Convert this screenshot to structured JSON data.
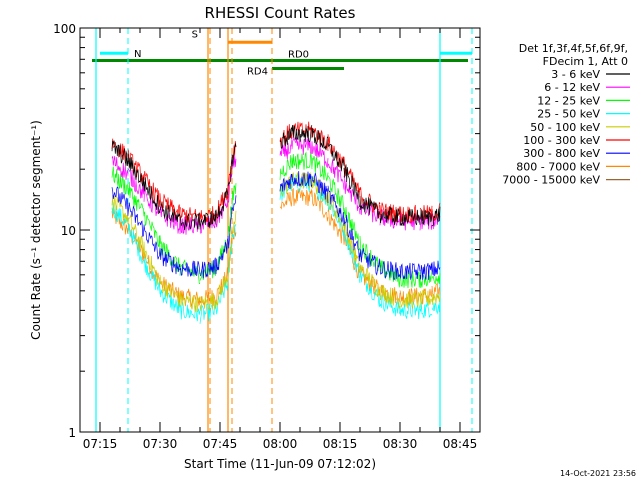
{
  "chart_data": {
    "type": "line",
    "title": "RHESSI Count Rates",
    "xlabel": "Start Time (11-Jun-09 07:12:02)",
    "ylabel": "Count Rate (s⁻¹ detector segment⁻¹)",
    "yscale": "log",
    "ylim": [
      1,
      100
    ],
    "xlim": [
      "07:10",
      "08:50"
    ],
    "y_ticks": [
      "1",
      "10",
      "100"
    ],
    "x_ticks": [
      "07:15",
      "07:30",
      "07:45",
      "08:00",
      "08:15",
      "08:30",
      "08:45"
    ],
    "legend_placement": "right",
    "legend_header": [
      "Det 1f,3f,4f,5f,6f,9f,",
      "FDecim 1, Att 0"
    ],
    "series": [
      {
        "name": "3 - 6 keV",
        "color": "#000000",
        "x": [
          "07:18",
          "07:22",
          "07:26",
          "07:30",
          "07:35",
          "07:40",
          "07:44",
          "07:47",
          "07:48",
          "07:49",
          "07:50",
          "07:58",
          "08:00",
          "08:03",
          "08:08",
          "08:12",
          "08:16",
          "08:20",
          "08:25",
          "08:30",
          "08:35",
          "08:38",
          "08:40"
        ],
        "y": [
          26,
          22,
          17,
          13,
          11,
          11,
          11.5,
          15,
          22,
          26,
          null,
          null,
          27,
          30,
          30,
          26,
          20,
          14,
          12,
          11.5,
          11.5,
          11.5,
          12
        ]
      },
      {
        "name": "6 - 12 keV",
        "color": "#ff00ff",
        "x": [
          "07:18",
          "07:22",
          "07:26",
          "07:30",
          "07:35",
          "07:40",
          "07:44",
          "07:47",
          "07:48",
          "07:49",
          "07:50",
          "07:58",
          "08:00",
          "08:03",
          "08:08",
          "08:12",
          "08:16",
          "08:20",
          "08:25",
          "08:30",
          "08:35",
          "08:38",
          "08:40"
        ],
        "y": [
          22,
          19,
          15,
          12,
          10.5,
          10.5,
          11,
          14,
          20,
          23,
          null,
          null,
          23,
          26,
          26,
          22,
          17,
          13,
          11.5,
          11,
          11,
          11,
          11.5
        ]
      },
      {
        "name": "12 - 25 keV",
        "color": "#00ff00",
        "x": [
          "07:18",
          "07:22",
          "07:26",
          "07:30",
          "07:35",
          "07:40",
          "07:44",
          "07:47",
          "07:48",
          "07:49",
          "07:50",
          "07:58",
          "08:00",
          "08:03",
          "08:08",
          "08:12",
          "08:16",
          "08:20",
          "08:25",
          "08:30",
          "08:35",
          "08:38",
          "08:40"
        ],
        "y": [
          19,
          16,
          12,
          8.5,
          6.5,
          6,
          6.5,
          9,
          14,
          16,
          null,
          null,
          19,
          22,
          22,
          18,
          13,
          8.5,
          6.5,
          5.7,
          5.7,
          5.8,
          6
        ]
      },
      {
        "name": "25 - 50 keV",
        "color": "#00ffff",
        "x": [
          "07:18",
          "07:22",
          "07:26",
          "07:30",
          "07:35",
          "07:40",
          "07:44",
          "07:47",
          "07:48",
          "07:49",
          "07:50",
          "07:58",
          "08:00",
          "08:03",
          "08:08",
          "08:12",
          "08:16",
          "08:20",
          "08:25",
          "08:30",
          "08:35",
          "08:38",
          "08:40"
        ],
        "y": [
          13,
          10.5,
          7,
          5,
          4,
          3.8,
          4,
          5.5,
          9,
          11,
          null,
          null,
          15,
          17,
          17,
          14,
          10,
          6,
          4.5,
          4,
          4,
          4.1,
          4.3
        ]
      },
      {
        "name": "50 - 100 keV",
        "color": "#cccc00",
        "x": [
          "07:18",
          "07:22",
          "07:26",
          "07:30",
          "07:35",
          "07:40",
          "07:44",
          "07:47",
          "07:48",
          "07:49",
          "07:50",
          "07:58",
          "08:00",
          "08:03",
          "08:08",
          "08:12",
          "08:16",
          "08:20",
          "08:25",
          "08:30",
          "08:35",
          "08:38",
          "08:40"
        ],
        "y": [
          14,
          11.5,
          8,
          5.5,
          4.5,
          4.3,
          4.5,
          6,
          9.5,
          11.5,
          null,
          null,
          15.5,
          17.5,
          17.5,
          14.5,
          10.5,
          6.5,
          5,
          4.5,
          4.5,
          4.6,
          4.8
        ]
      },
      {
        "name": "100 - 300 keV",
        "color": "#ff0000",
        "x": [
          "07:18",
          "07:22",
          "07:26",
          "07:30",
          "07:35",
          "07:40",
          "07:44",
          "07:47",
          "07:48",
          "07:49",
          "07:50",
          "07:58",
          "08:00",
          "08:03",
          "08:08",
          "08:12",
          "08:16",
          "08:20",
          "08:25",
          "08:30",
          "08:35",
          "08:38",
          "08:40"
        ],
        "y": [
          27,
          23,
          18,
          14,
          12,
          11.5,
          12,
          16,
          23,
          27,
          null,
          null,
          28,
          31,
          31,
          27,
          21,
          15,
          12.5,
          12,
          12,
          12,
          12.5
        ]
      },
      {
        "name": "300 - 800 keV",
        "color": "#0000ff",
        "x": [
          "07:18",
          "07:22",
          "07:26",
          "07:30",
          "07:35",
          "07:40",
          "07:44",
          "07:47",
          "07:48",
          "07:49",
          "07:50",
          "07:58",
          "08:00",
          "08:03",
          "08:08",
          "08:12",
          "08:16",
          "08:20",
          "08:25",
          "08:30",
          "08:35",
          "08:38",
          "08:40"
        ],
        "y": [
          16,
          13,
          10,
          7.5,
          6.5,
          6.3,
          6.6,
          8.5,
          12,
          14,
          null,
          null,
          16,
          18,
          18,
          15,
          11.5,
          7.5,
          6.5,
          6.2,
          6.2,
          6.3,
          6.5
        ]
      },
      {
        "name": "800 - 7000 keV",
        "color": "#ff8800",
        "x": [
          "07:18",
          "07:22",
          "07:26",
          "07:30",
          "07:35",
          "07:40",
          "07:44",
          "07:47",
          "07:48",
          "07:49",
          "07:50",
          "07:58",
          "08:00",
          "08:03",
          "08:08",
          "08:12",
          "08:16",
          "08:20",
          "08:25",
          "08:30",
          "08:35",
          "08:38",
          "08:40"
        ],
        "y": [
          12,
          10,
          7.5,
          5.5,
          4.7,
          4.5,
          4.7,
          6,
          9,
          10.5,
          null,
          null,
          13,
          14.5,
          14.5,
          12,
          9,
          6,
          5,
          4.7,
          4.7,
          4.8,
          5
        ]
      },
      {
        "name": "7000 - 15000 keV",
        "color": "#996633",
        "x": [],
        "y": []
      }
    ],
    "annotations": {
      "bars": [
        {
          "label": "N",
          "color": "#00ffff",
          "level": 75,
          "x_start": "07:15",
          "x_end": "07:22"
        },
        {
          "label": "",
          "color": "#00ffff",
          "level": 75,
          "x_start": "08:40",
          "x_end": "08:48"
        },
        {
          "label": "S",
          "color": "#ff8800",
          "level": 85,
          "x_start": "07:47",
          "x_end": "07:58"
        },
        {
          "label": "RD0",
          "color": "#008800",
          "level": 69,
          "x_start": "07:13",
          "x_end": "08:47"
        },
        {
          "label": "RD4",
          "color": "#008800",
          "level": 63,
          "x_start": "07:58",
          "x_end": "08:16"
        }
      ],
      "vlines_solid": [
        {
          "x": "07:14",
          "color": "#00ffff"
        },
        {
          "x": "08:40",
          "color": "#00ffff"
        },
        {
          "x": "07:42",
          "color": "#ff8800"
        },
        {
          "x": "07:47",
          "color": "#ff8800"
        }
      ],
      "vlines_dashed": [
        {
          "x": "07:22",
          "color": "#00ffff"
        },
        {
          "x": "08:48",
          "color": "#00ffff"
        },
        {
          "x": "07:42.5",
          "color": "#ff8800"
        },
        {
          "x": "07:48",
          "color": "#ff8800"
        },
        {
          "x": "07:58",
          "color": "#ff8800"
        }
      ]
    },
    "footer_timestamp": "14-Oct-2021 23:56"
  }
}
